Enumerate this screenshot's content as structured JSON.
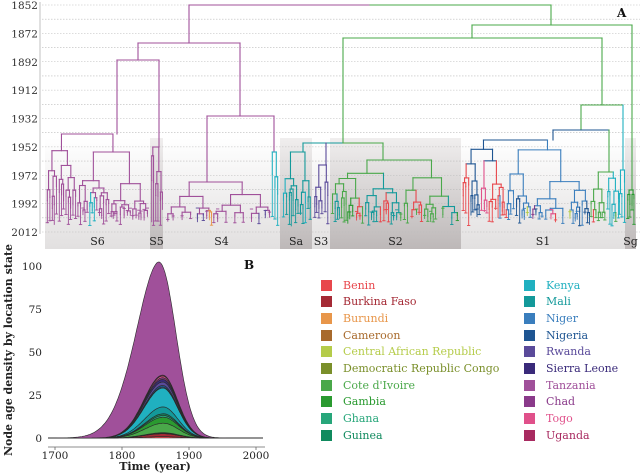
{
  "panel_a": {
    "label": "A",
    "year_ticks": [
      "1852",
      "1872",
      "1892",
      "1912",
      "1932",
      "1952",
      "1972",
      "1992",
      "2012"
    ],
    "clades": [
      "S6",
      "S5",
      "S4",
      "Sa",
      "S3",
      "S2",
      "S1",
      "Sg"
    ]
  },
  "chart_data": {
    "type": "area",
    "title": "B",
    "xlabel": "Time (year)",
    "ylabel": "Node age density by location state",
    "xlim": [
      1690,
      2010
    ],
    "ylim": [
      0,
      100
    ],
    "xticks": [
      "1700",
      "1800",
      "1900",
      "2000"
    ],
    "yticks": [
      "0",
      "25",
      "50",
      "75",
      "100"
    ],
    "stacked": true,
    "model": "asymmetric gaussian per location (peak, center year, left sd, right sd)",
    "series": [
      {
        "name": "Benin",
        "color": "#e8474c",
        "peak": 0.8,
        "center": 1862,
        "sdL": 28,
        "sdR": 22
      },
      {
        "name": "Burkina Faso",
        "color": "#a52a35",
        "peak": 1.7,
        "center": 1862,
        "sdL": 28,
        "sdR": 22
      },
      {
        "name": "Burundi",
        "color": "#e8964a",
        "peak": 0.1,
        "center": 1862,
        "sdL": 28,
        "sdR": 22
      },
      {
        "name": "Cameroon",
        "color": "#a86a2c",
        "peak": 0.1,
        "center": 1862,
        "sdL": 28,
        "sdR": 22
      },
      {
        "name": "Central African Republic",
        "color": "#b5cc4a",
        "peak": 0.1,
        "center": 1862,
        "sdL": 28,
        "sdR": 22
      },
      {
        "name": "Democratic Republic Congo",
        "color": "#7a8f2a",
        "peak": 0.3,
        "center": 1862,
        "sdL": 28,
        "sdR": 22
      },
      {
        "name": "Cote d'Ivoire",
        "color": "#4aa84a",
        "peak": 5.5,
        "center": 1862,
        "sdL": 28,
        "sdR": 22
      },
      {
        "name": "Gambia",
        "color": "#2a9a30",
        "peak": 3.5,
        "center": 1862,
        "sdL": 28,
        "sdR": 22
      },
      {
        "name": "Ghana",
        "color": "#27a67a",
        "peak": 1.0,
        "center": 1862,
        "sdL": 28,
        "sdR": 22
      },
      {
        "name": "Guinea",
        "color": "#108a5e",
        "peak": 1.0,
        "center": 1862,
        "sdL": 28,
        "sdR": 22
      },
      {
        "name": "Kenya",
        "color": "#20b0c0",
        "peak": 11.0,
        "center": 1860,
        "sdL": 28,
        "sdR": 22
      },
      {
        "name": "Mali",
        "color": "#13999a",
        "peak": 4.0,
        "center": 1860,
        "sdL": 28,
        "sdR": 22
      },
      {
        "name": "Niger",
        "color": "#3a7ebd",
        "peak": 0.5,
        "center": 1860,
        "sdL": 28,
        "sdR": 22
      },
      {
        "name": "Nigeria",
        "color": "#1e5592",
        "peak": 1.0,
        "center": 1860,
        "sdL": 28,
        "sdR": 22
      },
      {
        "name": "Rwanda",
        "color": "#5a4a9a",
        "peak": 2.0,
        "center": 1860,
        "sdL": 28,
        "sdR": 22
      },
      {
        "name": "Sierra Leone",
        "color": "#3a2a7a",
        "peak": 1.5,
        "center": 1860,
        "sdL": 28,
        "sdR": 22
      },
      {
        "name": "Tanzania",
        "color": "#a0509a",
        "peak": 67.0,
        "center": 1852,
        "sdL": 38,
        "sdR": 26
      },
      {
        "name": "Chad",
        "color": "#8a3a8a",
        "peak": 1.0,
        "center": 1860,
        "sdL": 28,
        "sdR": 22
      },
      {
        "name": "Togo",
        "color": "#e0508a",
        "peak": 1.0,
        "center": 1860,
        "sdL": 28,
        "sdR": 22
      },
      {
        "name": "Uganda",
        "color": "#a82a60",
        "peak": 0.5,
        "center": 1860,
        "sdL": 28,
        "sdR": 22
      }
    ],
    "stack_order": [
      "Benin",
      "Burkina Faso",
      "Burundi",
      "Cameroon",
      "Central African Republic",
      "Democratic Republic Congo",
      "Cote d'Ivoire",
      "Gambia",
      "Ghana",
      "Guinea",
      "Mali",
      "Kenya",
      "Niger",
      "Nigeria",
      "Rwanda",
      "Sierra Leone",
      "Chad",
      "Togo",
      "Uganda",
      "Tanzania"
    ]
  }
}
